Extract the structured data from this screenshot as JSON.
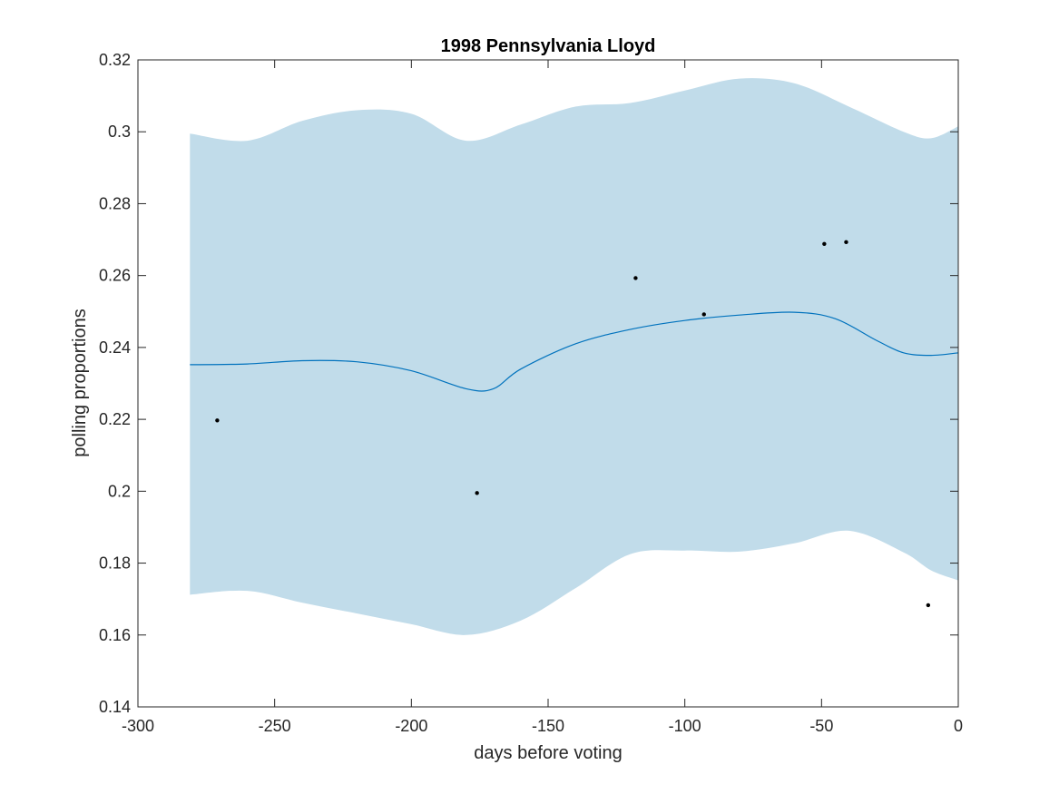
{
  "chart_data": {
    "type": "line",
    "title": "1998 Pennsylvania Lloyd",
    "xlabel": "days before voting",
    "ylabel": "polling proportions",
    "xlim": [
      -300,
      0
    ],
    "ylim": [
      0.14,
      0.32
    ],
    "xticks": [
      -300,
      -250,
      -200,
      -150,
      -100,
      -50,
      0
    ],
    "xtick_labels": [
      "-300",
      "-250",
      "-200",
      "-150",
      "-100",
      "-50",
      "0"
    ],
    "yticks": [
      0.14,
      0.16,
      0.18,
      0.2,
      0.22,
      0.24,
      0.26,
      0.28,
      0.3,
      0.32
    ],
    "ytick_labels": [
      "0.14",
      "0.16",
      "0.18",
      "0.2",
      "0.22",
      "0.24",
      "0.26",
      "0.28",
      "0.3",
      "0.32"
    ],
    "grid": false,
    "colors": {
      "band": "#c1dcea",
      "line": "#0072bd",
      "points": "#000000"
    },
    "band": {
      "x": [
        -281,
        -260,
        -240,
        -220,
        -200,
        -180,
        -160,
        -140,
        -120,
        -100,
        -80,
        -60,
        -40,
        -20,
        -10,
        0
      ],
      "upper": [
        0.2995,
        0.2975,
        0.303,
        0.306,
        0.305,
        0.2975,
        0.302,
        0.307,
        0.308,
        0.3115,
        0.3148,
        0.3135,
        0.307,
        0.3,
        0.2982,
        0.3015
      ],
      "lower": [
        0.1712,
        0.1723,
        0.169,
        0.166,
        0.163,
        0.16,
        0.164,
        0.173,
        0.1825,
        0.1835,
        0.1832,
        0.1855,
        0.189,
        0.183,
        0.178,
        0.1752
      ]
    },
    "series": [
      {
        "type": "line",
        "x": [
          -281,
          -260,
          -240,
          -220,
          -200,
          -180,
          -170,
          -160,
          -140,
          -120,
          -100,
          -80,
          -60,
          -45,
          -30,
          -20,
          -10,
          0
        ],
        "values": [
          0.2352,
          0.2354,
          0.2363,
          0.236,
          0.2335,
          0.2285,
          0.2285,
          0.234,
          0.241,
          0.245,
          0.2475,
          0.249,
          0.2498,
          0.248,
          0.242,
          0.2385,
          0.2378,
          0.2385
        ]
      },
      {
        "type": "scatter",
        "x": [
          -271,
          -176,
          -118,
          -93,
          -49,
          -41,
          -11
        ],
        "values": [
          0.2197,
          0.1995,
          0.2593,
          0.2492,
          0.2688,
          0.2693,
          0.1683
        ]
      }
    ]
  }
}
